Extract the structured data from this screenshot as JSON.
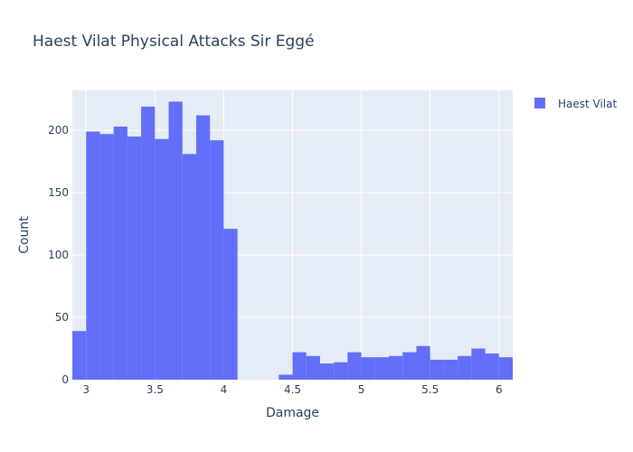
{
  "chart_data": {
    "type": "bar",
    "subtype": "histogram",
    "title": "Haest Vilat Physical Attacks Sir Eggé",
    "xlabel": "Damage",
    "ylabel": "Count",
    "xlim": [
      2.9,
      6.1
    ],
    "ylim": [
      0,
      232
    ],
    "bin_start": 2.9,
    "bin_width": 0.1,
    "x_ticks": [
      {
        "value": 3,
        "label": "3"
      },
      {
        "value": 3.5,
        "label": "3.5"
      },
      {
        "value": 4,
        "label": "4"
      },
      {
        "value": 4.5,
        "label": "4.5"
      },
      {
        "value": 5,
        "label": "5"
      },
      {
        "value": 5.5,
        "label": "5.5"
      },
      {
        "value": 6,
        "label": "6"
      }
    ],
    "y_ticks": [
      {
        "value": 0,
        "label": "0"
      },
      {
        "value": 50,
        "label": "50"
      },
      {
        "value": 100,
        "label": "100"
      },
      {
        "value": 150,
        "label": "150"
      },
      {
        "value": 200,
        "label": "200"
      }
    ],
    "series": [
      {
        "name": "Haest Vilat",
        "color": "#636efa",
        "values": [
          39,
          199,
          197,
          203,
          195,
          219,
          193,
          223,
          181,
          212,
          192,
          121,
          0,
          0,
          0,
          4,
          22,
          19,
          13,
          14,
          22,
          18,
          18,
          19,
          22,
          27,
          16,
          16,
          19,
          25,
          21,
          18
        ]
      }
    ],
    "legend": {
      "position": "top-right"
    },
    "grid": true,
    "plot_background": "#e5ecf6"
  }
}
